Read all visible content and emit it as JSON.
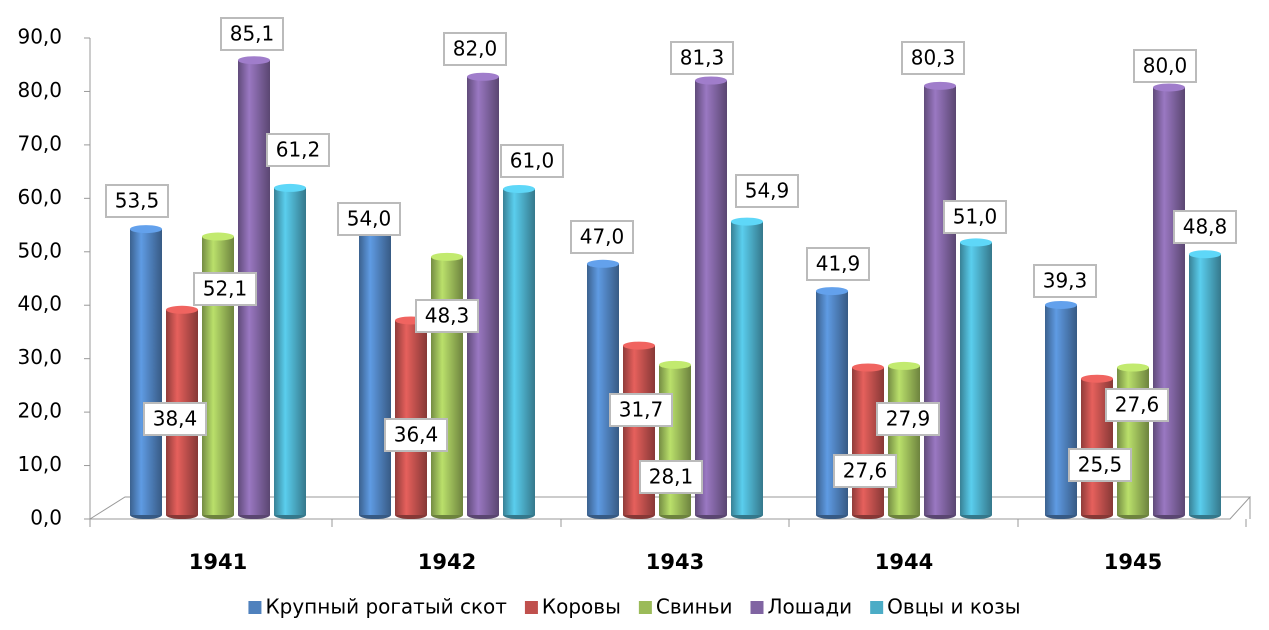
{
  "chart_data": {
    "type": "bar",
    "categories": [
      "1941",
      "1942",
      "1943",
      "1944",
      "1945"
    ],
    "series": [
      {
        "name": "Крупный рогатый скот",
        "color": "#4f81bd",
        "values": [
          53.5,
          54.0,
          47.0,
          41.9,
          39.3
        ],
        "value_labels": [
          "53,5",
          "54,0",
          "47,0",
          "41,9",
          "39,3"
        ]
      },
      {
        "name": "Коровы",
        "color": "#c0504d",
        "values": [
          38.4,
          36.4,
          31.7,
          27.6,
          25.5
        ],
        "value_labels": [
          "38,4",
          "36,4",
          "31,7",
          "27,6",
          "25,5"
        ]
      },
      {
        "name": "Свиньи",
        "color": "#9bbb59",
        "values": [
          52.1,
          48.3,
          28.1,
          27.9,
          27.6
        ],
        "value_labels": [
          "52,1",
          "48,3",
          "28,1",
          "27,9",
          "27,6"
        ]
      },
      {
        "name": "Лошади",
        "color": "#8064a2",
        "values": [
          85.1,
          82.0,
          81.3,
          80.3,
          80.0
        ],
        "value_labels": [
          "85,1",
          "82,0",
          "81,3",
          "80,3",
          "80,0"
        ]
      },
      {
        "name": "Овцы и козы",
        "color": "#4bacc6",
        "values": [
          61.2,
          61.0,
          54.9,
          51.0,
          48.8
        ],
        "value_labels": [
          "61,2",
          "61,0",
          "54,9",
          "51,0",
          "48,8"
        ]
      }
    ],
    "ylim": [
      0,
      90
    ],
    "yticks": [
      {
        "value": 0,
        "label": "0,0"
      },
      {
        "value": 10,
        "label": "10,0"
      },
      {
        "value": 20,
        "label": "20,0"
      },
      {
        "value": 30,
        "label": "30,0"
      },
      {
        "value": 40,
        "label": "40,0"
      },
      {
        "value": 50,
        "label": "50,0"
      },
      {
        "value": 60,
        "label": "60,0"
      },
      {
        "value": 70,
        "label": "70,0"
      },
      {
        "value": 80,
        "label": "80,0"
      },
      {
        "value": 90,
        "label": "90,0"
      }
    ],
    "legend": "bottom"
  }
}
